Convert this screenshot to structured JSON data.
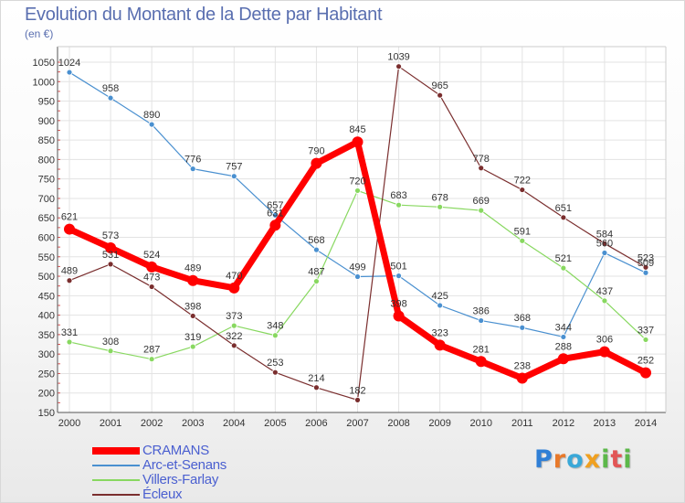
{
  "chart_data": {
    "type": "line",
    "title": "Evolution du Montant de la Dette par Habitant",
    "subtitle": "(en €)",
    "x": [
      "2000",
      "2001",
      "2002",
      "2003",
      "2004",
      "2005",
      "2006",
      "2007",
      "2008",
      "2009",
      "2010",
      "2011",
      "2012",
      "2013",
      "2014"
    ],
    "yticks": [
      150,
      200,
      250,
      300,
      350,
      400,
      450,
      500,
      550,
      600,
      650,
      700,
      750,
      800,
      850,
      900,
      950,
      1000,
      1050
    ],
    "ylim": [
      150,
      1050
    ],
    "grid": true,
    "legend_position": "bottom-left",
    "series": [
      {
        "name": "CRAMANS",
        "color": "#ff0000",
        "values": [
          621,
          573,
          524,
          489,
          470,
          631,
          790,
          845,
          398,
          323,
          281,
          238,
          288,
          306,
          252
        ]
      },
      {
        "name": "Arc-et-Senans",
        "color": "#4a90d0",
        "values": [
          1024,
          958,
          890,
          776,
          757,
          657,
          568,
          499,
          501,
          425,
          386,
          368,
          344,
          560,
          509
        ]
      },
      {
        "name": "Villers-Farlay",
        "color": "#88d860",
        "values": [
          331,
          308,
          287,
          319,
          373,
          348,
          487,
          720,
          683,
          678,
          669,
          591,
          521,
          437,
          337
        ]
      },
      {
        "name": "Écleux",
        "color": "#7a2e2e",
        "values": [
          489,
          531,
          473,
          398,
          322,
          253,
          214,
          182,
          1039,
          965,
          778,
          722,
          651,
          584,
          523
        ]
      }
    ]
  },
  "logo": {
    "letters": [
      "P",
      "r",
      "o",
      "x",
      "i",
      "t",
      "i"
    ]
  }
}
